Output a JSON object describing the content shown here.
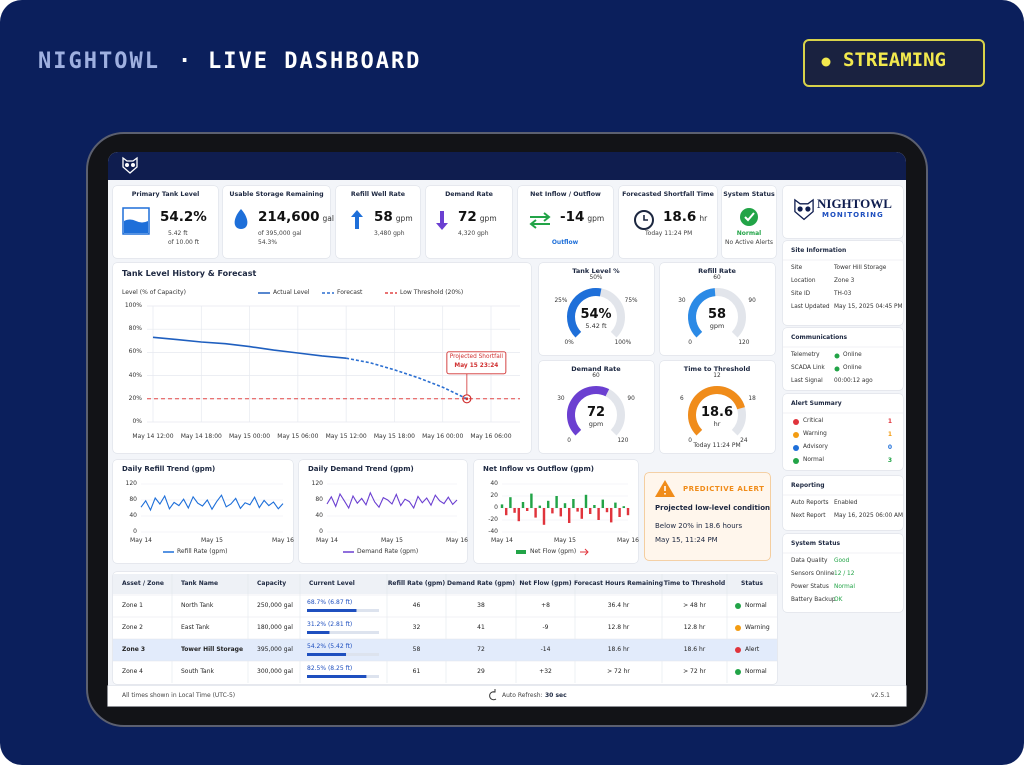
{
  "header": {
    "brand": "NIGHTOWL",
    "separator": "·",
    "title": "LIVE DASHBOARD",
    "status": "STREAMING"
  },
  "kpis": [
    {
      "label": "Primary Tank Level",
      "value": "54.2%",
      "lines": [
        "5.42 ft",
        "of 10.00 ft"
      ]
    },
    {
      "label": "Usable Storage Remaining",
      "value": "214,600",
      "unit": "gal",
      "lines": [
        "of 395,000 gal",
        "54.3%"
      ]
    },
    {
      "label": "Refill Well Rate",
      "value": "58",
      "unit": "gpm",
      "lines": [
        "3,480 gph"
      ]
    },
    {
      "label": "Demand Rate",
      "value": "72",
      "unit": "gpm",
      "lines": [
        "4,320 gph"
      ]
    },
    {
      "label": "Net Inflow / Outflow",
      "value": "-14",
      "unit": "gpm",
      "lines": [
        "Outflow"
      ]
    },
    {
      "label": "Forecasted Shortfall Time",
      "value": "18.6",
      "unit": "hr",
      "lines": [
        "Today 11:24 PM"
      ]
    },
    {
      "label": "System Status",
      "value": "Normal",
      "lines": [
        "No Active Alerts"
      ]
    }
  ],
  "chart_data": [
    {
      "type": "line",
      "title": "Tank Level History & Forecast",
      "y_label": "Level (% of Capacity)",
      "x": [
        "May 14 12:00",
        null,
        "May 14 18:00",
        null,
        "May 15 00:00",
        null,
        "May 15 06:00",
        null,
        "May 15 12:00",
        null,
        "May 15 18:00",
        null,
        "May 16 00:00",
        null,
        "May 16 06:00"
      ],
      "ylim": [
        0,
        100
      ],
      "yticks": [
        {
          "value": 0,
          "label": "0%"
        },
        {
          "value": 20,
          "label": "20%"
        },
        {
          "value": 40,
          "label": "40%"
        },
        {
          "value": 60,
          "label": "60%"
        },
        {
          "value": 80,
          "label": "80%"
        },
        {
          "value": 100,
          "label": "100%"
        }
      ],
      "grid": true,
      "series": [
        {
          "name": "Actual Level",
          "color": "#1f5fbf",
          "dash": false,
          "values": [
            73,
            71,
            69,
            67.5,
            65,
            62,
            59.5,
            57,
            55,
            null,
            null,
            null,
            null,
            null,
            null
          ]
        },
        {
          "name": "Forecast",
          "color": "#2b6fd1",
          "dash": true,
          "values": [
            null,
            null,
            null,
            null,
            null,
            null,
            null,
            null,
            55,
            51,
            45,
            38,
            30,
            20,
            null
          ]
        }
      ],
      "threshold": {
        "name": "Low Threshold (20%)",
        "value": 20,
        "color": "#e04545"
      },
      "annotation": {
        "title": "Projected Shortfall",
        "time": "May 15 23:24"
      }
    },
    {
      "type": "gauge",
      "title": "Tank Level %",
      "value": 54,
      "value_label": "54%",
      "unit": "5.42 ft",
      "range": [
        0,
        100
      ],
      "color": "#1e6fd9",
      "ticks": [
        {
          "value": 0,
          "label": "0%"
        },
        {
          "value": 25,
          "label": "25%"
        },
        {
          "value": 50,
          "label": "50%"
        },
        {
          "value": 75,
          "label": "75%"
        },
        {
          "value": 100,
          "label": "100%"
        }
      ]
    },
    {
      "type": "gauge",
      "title": "Refill Rate",
      "value": 58,
      "unit": "gpm",
      "range": [
        0,
        120
      ],
      "color": "#2b8ae6",
      "ticks": [
        0,
        30,
        60,
        90,
        120
      ]
    },
    {
      "type": "gauge",
      "title": "Demand Rate",
      "value": 72,
      "unit": "gpm",
      "range": [
        0,
        120
      ],
      "color": "#6b3fd1",
      "ticks": [
        0,
        30,
        60,
        90,
        120
      ]
    },
    {
      "type": "gauge",
      "title": "Time to Threshold",
      "value": 18.6,
      "unit": "hr",
      "note": "Today 11:24 PM",
      "range": [
        0,
        24
      ],
      "color": "#f08c1a",
      "ticks": [
        0,
        6,
        12,
        18,
        24
      ]
    },
    {
      "type": "line",
      "title": "Daily Refill Trend (gpm)",
      "x": [
        "May 14",
        null,
        null,
        null,
        null,
        null,
        null,
        null,
        null,
        null,
        null,
        null,
        null,
        null,
        null,
        "May 15",
        null,
        null,
        null,
        null,
        null,
        null,
        null,
        null,
        null,
        null,
        null,
        null,
        null,
        null,
        "May 16"
      ],
      "ylim": [
        0,
        120
      ],
      "yticks": [
        0,
        40,
        80,
        120
      ],
      "series": [
        {
          "name": "Refill Rate (gpm)",
          "color": "#1e6fd9",
          "values": [
            62,
            78,
            55,
            85,
            70,
            90,
            58,
            74,
            66,
            82,
            60,
            88,
            72,
            65,
            80,
            57,
            76,
            92,
            63,
            70,
            84,
            59,
            73,
            68,
            87,
            61,
            79,
            66,
            75,
            58,
            71
          ]
        }
      ]
    },
    {
      "type": "line",
      "title": "Daily Demand Trend (gpm)",
      "x": [
        "May 14",
        null,
        null,
        null,
        null,
        null,
        null,
        null,
        null,
        null,
        null,
        null,
        null,
        null,
        null,
        "May 15",
        null,
        null,
        null,
        null,
        null,
        null,
        null,
        null,
        null,
        null,
        null,
        null,
        null,
        null,
        "May 16"
      ],
      "ylim": [
        0,
        120
      ],
      "yticks": [
        0,
        40,
        80,
        120
      ],
      "series": [
        {
          "name": "Demand Rate (gpm)",
          "color": "#6b3fd1",
          "values": [
            70,
            88,
            64,
            95,
            78,
            60,
            90,
            72,
            84,
            68,
            98,
            75,
            62,
            86,
            80,
            70,
            94,
            66,
            82,
            76,
            60,
            89,
            73,
            85,
            67,
            92,
            78,
            71,
            87,
            69,
            80
          ]
        }
      ]
    },
    {
      "type": "bar",
      "title": "Net Inflow vs Outflow (gpm)",
      "x": [
        "May 14",
        null,
        null,
        null,
        null,
        null,
        null,
        null,
        null,
        null,
        null,
        null,
        null,
        null,
        null,
        "May 15",
        null,
        null,
        null,
        null,
        null,
        null,
        null,
        null,
        null,
        null,
        null,
        null,
        null,
        null,
        "May 16"
      ],
      "ylim": [
        -40,
        40
      ],
      "yticks": [
        -40,
        -20,
        0,
        20,
        40
      ],
      "series": [
        {
          "name": "Net Flow (gpm)",
          "colors": {
            "positive": "#22a447",
            "negative": "#e0343c"
          },
          "values": [
            6,
            -12,
            18,
            -8,
            -22,
            10,
            -5,
            24,
            -16,
            4,
            -28,
            12,
            -9,
            20,
            -14,
            8,
            -25,
            15,
            -6,
            -18,
            22,
            -10,
            5,
            -20,
            14,
            -7,
            -24,
            9,
            -15,
            3,
            -12
          ]
        }
      ]
    }
  ],
  "alert": {
    "title": "PREDICTIVE ALERT",
    "headline": "Projected low-level condition",
    "detail": "Below 20% in 18.6 hours",
    "time": "May 15, 11:24 PM"
  },
  "table": {
    "columns": [
      "Asset / Zone",
      "Tank Name",
      "Capacity",
      "Current Level",
      "Refill Rate (gpm)",
      "Demand Rate (gpm)",
      "Net Flow (gpm)",
      "Forecast Hours Remaining",
      "Time to Threshold",
      "Status"
    ],
    "rows": [
      [
        "Zone 1",
        "North Tank",
        "250,000 gal",
        "68.7% (6.87 ft)",
        "46",
        "38",
        "+8",
        "36.4 hr",
        "> 48 hr",
        "Normal"
      ],
      [
        "Zone 2",
        "East Tank",
        "180,000 gal",
        "31.2% (2.81 ft)",
        "32",
        "41",
        "-9",
        "12.8 hr",
        "12.8 hr",
        "Warning"
      ],
      [
        "Zone 3",
        "Tower Hill Storage",
        "395,000 gal",
        "54.2% (5.42 ft)",
        "58",
        "72",
        "-14",
        "18.6 hr",
        "18.6 hr",
        "Alert"
      ],
      [
        "Zone 4",
        "South Tank",
        "300,000 gal",
        "82.5% (8.25 ft)",
        "61",
        "29",
        "+32",
        "> 72 hr",
        "> 72 hr",
        "Normal"
      ]
    ],
    "levels": [
      68.7,
      31.2,
      54.2,
      82.5
    ],
    "level_range": [
      0,
      100
    ],
    "selected_row": 2,
    "status_colors": {
      "Normal": "#22a447",
      "Warning": "#f39c12",
      "Alert": "#e0343c"
    }
  },
  "sidebar": {
    "logo": {
      "name": "NIGHTOWL",
      "tagline": "MONITORING"
    },
    "sections": [
      {
        "title": "Site Information",
        "rows": [
          [
            "Site",
            "Tower Hill Storage"
          ],
          [
            "Location",
            "Zone 3"
          ],
          [
            "Site ID",
            "TH-03"
          ],
          [
            "Last Updated",
            "May 15, 2025 04:45 PM"
          ]
        ]
      },
      {
        "title": "Communications",
        "rows": [
          [
            "Telemetry",
            "Online"
          ],
          [
            "SCADA Link",
            "Online"
          ],
          [
            "Last Signal",
            "00:00:12 ago"
          ]
        ],
        "dots": [
          "#22a447",
          "#22a447",
          null
        ]
      },
      {
        "title": "Alert Summary",
        "rows": [
          [
            "Critical",
            "1"
          ],
          [
            "Warning",
            "1"
          ],
          [
            "Advisory",
            "0"
          ],
          [
            "Normal",
            "3"
          ]
        ],
        "colors": [
          "#e0343c",
          "#f39c12",
          "#1e6fd9",
          "#22a447"
        ]
      },
      {
        "title": "Reporting",
        "rows": [
          [
            "Auto Reports",
            "Enabled"
          ],
          [
            "Next Report",
            "May 16, 2025 06:00 AM"
          ]
        ]
      },
      {
        "title": "System Status",
        "rows": [
          [
            "Data Quality",
            "Good"
          ],
          [
            "Sensors Online",
            "12 / 12"
          ],
          [
            "Power Status",
            "Normal"
          ],
          [
            "Battery Backup",
            "OK"
          ]
        ],
        "value_color": "#22a447"
      }
    ]
  },
  "footer": {
    "timezone": "All times shown in Local Time (UTC-5)",
    "refresh_label": "Auto Refresh:",
    "refresh_value": "30 sec",
    "version": "v2.5.1"
  }
}
